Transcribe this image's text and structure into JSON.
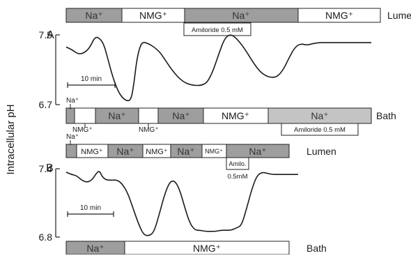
{
  "chart_data": [
    {
      "type": "line",
      "panel": "A",
      "ylabel": "Intracellular pH",
      "ylim": [
        6.7,
        7.5
      ],
      "yticks": [
        "7.5",
        "6.7"
      ],
      "scale_bar": "10 min",
      "x_unit": "min",
      "series": [
        {
          "x": [
            0,
            2,
            4,
            6,
            8,
            10,
            12,
            13,
            14,
            16,
            18,
            20,
            22,
            23,
            24,
            25,
            26,
            28,
            30,
            32,
            34,
            36,
            38,
            40,
            42,
            44,
            46,
            48,
            50,
            52,
            54,
            56,
            58,
            60,
            62,
            64,
            66,
            68,
            70,
            72,
            74,
            76,
            78,
            80,
            82,
            84,
            86,
            88,
            90,
            92,
            94,
            96,
            98,
            100,
            102,
            104
          ],
          "y": [
            7.36,
            7.33,
            7.28,
            7.29,
            7.35,
            7.49,
            7.44,
            7.37,
            7.25,
            7.0,
            6.83,
            6.75,
            6.74,
            6.92,
            7.2,
            7.35,
            7.42,
            7.4,
            7.36,
            7.3,
            7.2,
            7.1,
            7.02,
            6.96,
            6.93,
            6.92,
            6.92,
            6.95,
            7.08,
            7.28,
            7.46,
            7.51,
            7.46,
            7.38,
            7.28,
            7.17,
            7.08,
            7.03,
            7.01,
            7.02,
            7.1,
            7.24,
            7.36,
            7.4,
            7.38,
            7.4,
            7.41,
            7.41,
            7.41,
            7.41,
            7.41,
            7.41,
            7.41,
            7.41,
            7.41,
            7.41
          ]
        }
      ],
      "lumen": {
        "label": "Lumen",
        "segments": [
          {
            "label": "Na⁺",
            "fill": "#9e9e9e"
          },
          {
            "label": "NMG⁺",
            "fill": "#ffffff"
          },
          {
            "label": "Na⁺",
            "fill": "#9e9e9e"
          },
          {
            "label": "NMG⁺",
            "fill": "#ffffff"
          }
        ],
        "annotation": "Amiloride 0.5 mM"
      },
      "bath": {
        "label": "Bath",
        "segments": [
          {
            "label": "",
            "fill": "#9e9e9e"
          },
          {
            "label": "",
            "fill": "#ffffff"
          },
          {
            "label": "Na⁺",
            "fill": "#9e9e9e"
          },
          {
            "label": "",
            "fill": "#ffffff"
          },
          {
            "label": "Na⁺",
            "fill": "#9e9e9e"
          },
          {
            "label": "NMG⁺",
            "fill": "#ffffff"
          },
          {
            "label": "Na⁺",
            "fill": "#c4c4c4"
          }
        ],
        "annotation": "Amiloride 0.5 mM",
        "callouts": [
          "Na⁺",
          "NMG⁺",
          "NMG⁺"
        ]
      }
    },
    {
      "type": "line",
      "panel": "B",
      "ylim": [
        6.8,
        7.4
      ],
      "yticks": [
        "7.4",
        "6.8"
      ],
      "scale_bar": "10 min",
      "x_unit": "min",
      "series": [
        {
          "x": [
            0,
            2,
            4,
            6,
            8,
            10,
            12,
            13,
            14,
            15,
            16,
            18,
            20,
            22,
            24,
            26,
            28,
            30,
            32,
            34,
            36,
            38,
            40,
            42,
            44,
            46,
            48,
            50,
            52,
            54,
            56,
            58,
            60,
            62,
            64,
            66,
            68,
            70,
            72,
            74,
            76,
            78,
            80,
            82,
            84,
            86,
            88,
            90
          ],
          "y": [
            7.37,
            7.35,
            7.34,
            7.3,
            7.28,
            7.3,
            7.37,
            7.38,
            7.33,
            7.31,
            7.3,
            7.3,
            7.3,
            7.26,
            7.18,
            7.05,
            6.92,
            6.82,
            6.81,
            6.84,
            6.99,
            7.16,
            7.28,
            7.3,
            7.22,
            7.06,
            6.92,
            6.86,
            6.86,
            6.85,
            6.85,
            6.85,
            6.86,
            6.86,
            6.86,
            6.88,
            6.9,
            7.05,
            7.22,
            7.34,
            7.37,
            7.36,
            7.35,
            7.35,
            7.35,
            7.35,
            7.35,
            7.35
          ]
        }
      ],
      "lumen": {
        "label": "Lumen",
        "segments": [
          {
            "label": "",
            "fill": "#9e9e9e"
          },
          {
            "label": "NMG⁺",
            "fill": "#ffffff"
          },
          {
            "label": "Na⁺",
            "fill": "#9e9e9e"
          },
          {
            "label": "NMG⁺",
            "fill": "#ffffff"
          },
          {
            "label": "Na⁺",
            "fill": "#9e9e9e"
          },
          {
            "label": "NMG⁺",
            "fill": "#ffffff"
          },
          {
            "label": "Na⁺",
            "fill": "#9e9e9e"
          }
        ],
        "callouts": [
          "Na⁺"
        ],
        "annotation": "Amilo.",
        "annotation_dose": "0.5mM"
      },
      "bath": {
        "label": "Bath",
        "segments": [
          {
            "label": "Na⁺",
            "fill": "#9e9e9e"
          },
          {
            "label": "NMG⁺",
            "fill": "#ffffff"
          }
        ]
      }
    }
  ]
}
